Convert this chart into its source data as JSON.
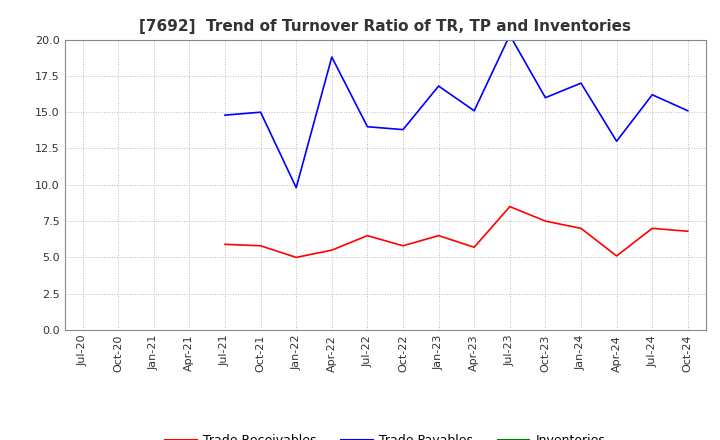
{
  "title": "[7692]  Trend of Turnover Ratio of TR, TP and Inventories",
  "x_labels": [
    "Jul-20",
    "Oct-20",
    "Jan-21",
    "Apr-21",
    "Jul-21",
    "Oct-21",
    "Jan-22",
    "Apr-22",
    "Jul-22",
    "Oct-22",
    "Jan-23",
    "Apr-23",
    "Jul-23",
    "Oct-23",
    "Jan-24",
    "Apr-24",
    "Jul-24",
    "Oct-24"
  ],
  "trade_receivables": [
    null,
    null,
    null,
    null,
    5.9,
    5.8,
    5.0,
    5.5,
    6.5,
    5.8,
    6.5,
    5.7,
    8.5,
    7.5,
    7.0,
    5.1,
    7.0,
    6.8
  ],
  "trade_payables": [
    null,
    null,
    null,
    null,
    14.8,
    15.0,
    9.8,
    18.8,
    14.0,
    13.8,
    16.8,
    15.1,
    20.3,
    16.0,
    17.0,
    13.0,
    16.2,
    15.1
  ],
  "inventories": [
    null,
    null,
    null,
    null,
    null,
    null,
    null,
    null,
    null,
    null,
    null,
    null,
    null,
    null,
    null,
    null,
    null,
    null
  ],
  "ylim": [
    0.0,
    20.0
  ],
  "yticks": [
    0.0,
    2.5,
    5.0,
    7.5,
    10.0,
    12.5,
    15.0,
    17.5,
    20.0
  ],
  "color_tr": "#ff0000",
  "color_tp": "#0000ff",
  "color_inv": "#008000",
  "background_color": "#ffffff",
  "grid_color": "#bbbbbb",
  "title_fontsize": 11,
  "legend_fontsize": 9,
  "tick_fontsize": 8
}
